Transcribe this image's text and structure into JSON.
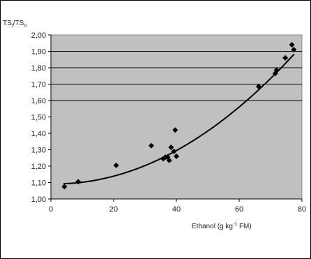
{
  "chart_data": {
    "type": "scatter",
    "title": "",
    "ylabel_main": "TS",
    "ylabel_sub1": "t",
    "ylabel_sep": "/TS",
    "ylabel_sub2": "0",
    "xlabel_main": "Ethanol (g kg",
    "xlabel_sup": "-1",
    "xlabel_tail": " FM)",
    "xlim": [
      0,
      80
    ],
    "ylim": [
      1.0,
      2.0
    ],
    "x_ticks": [
      "0",
      "20",
      "40",
      "60",
      "80"
    ],
    "y_ticks": [
      "1,00",
      "1,10",
      "1,20",
      "1,30",
      "1,40",
      "1,50",
      "1,60",
      "1,70",
      "1,80",
      "1,90",
      "2,00"
    ],
    "horizontal_gridlines_at": [
      1.6,
      1.7,
      1.8,
      1.9
    ],
    "plot_background": "#c0c0c0",
    "marker_color": "#000000",
    "series": [
      {
        "points": [
          {
            "x": 4.3,
            "y": 1.075
          },
          {
            "x": 8.7,
            "y": 1.105
          },
          {
            "x": 20.8,
            "y": 1.205
          },
          {
            "x": 32.0,
            "y": 1.325
          },
          {
            "x": 35.8,
            "y": 1.245
          },
          {
            "x": 36.5,
            "y": 1.255
          },
          {
            "x": 37.2,
            "y": 1.255
          },
          {
            "x": 37.7,
            "y": 1.235
          },
          {
            "x": 38.3,
            "y": 1.315
          },
          {
            "x": 39.2,
            "y": 1.29
          },
          {
            "x": 39.6,
            "y": 1.42
          },
          {
            "x": 40.0,
            "y": 1.26
          },
          {
            "x": 66.2,
            "y": 1.685
          },
          {
            "x": 71.5,
            "y": 1.765
          },
          {
            "x": 71.9,
            "y": 1.785
          },
          {
            "x": 74.7,
            "y": 1.86
          },
          {
            "x": 76.8,
            "y": 1.94
          },
          {
            "x": 77.4,
            "y": 1.91
          }
        ]
      }
    ],
    "trendline": {
      "type": "polynomial",
      "degree": 2,
      "x_range": [
        4,
        77.5
      ],
      "coefficients": [
        1.092,
        -0.00038,
        0.0001365
      ]
    }
  }
}
